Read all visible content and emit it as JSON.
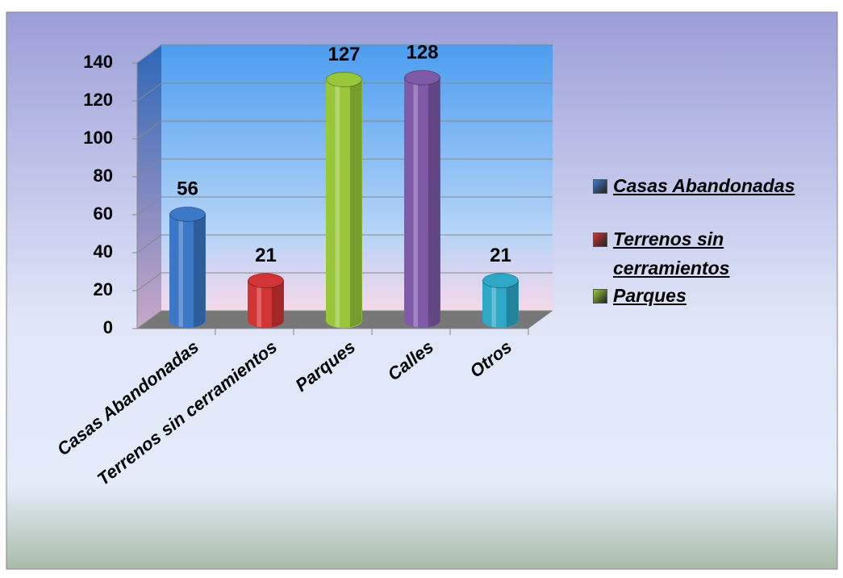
{
  "chart_data": {
    "type": "bar",
    "categories": [
      "Casas Abandonadas",
      "Terrenos sin cerramientos",
      "Parques",
      "Calles",
      "Otros"
    ],
    "values": [
      56,
      21,
      127,
      128,
      21
    ],
    "colors": [
      "#3c78c8",
      "#d03434",
      "#98c83a",
      "#7f5aa8",
      "#2fa8c8"
    ],
    "ylim": [
      0,
      140
    ],
    "yticks": [
      0,
      20,
      40,
      60,
      80,
      100,
      120,
      140
    ],
    "grid": true,
    "legend": {
      "position": "right",
      "entries": [
        "Casas Abandonadas",
        "Terrenos sin cerramientos",
        "Parques"
      ]
    }
  }
}
